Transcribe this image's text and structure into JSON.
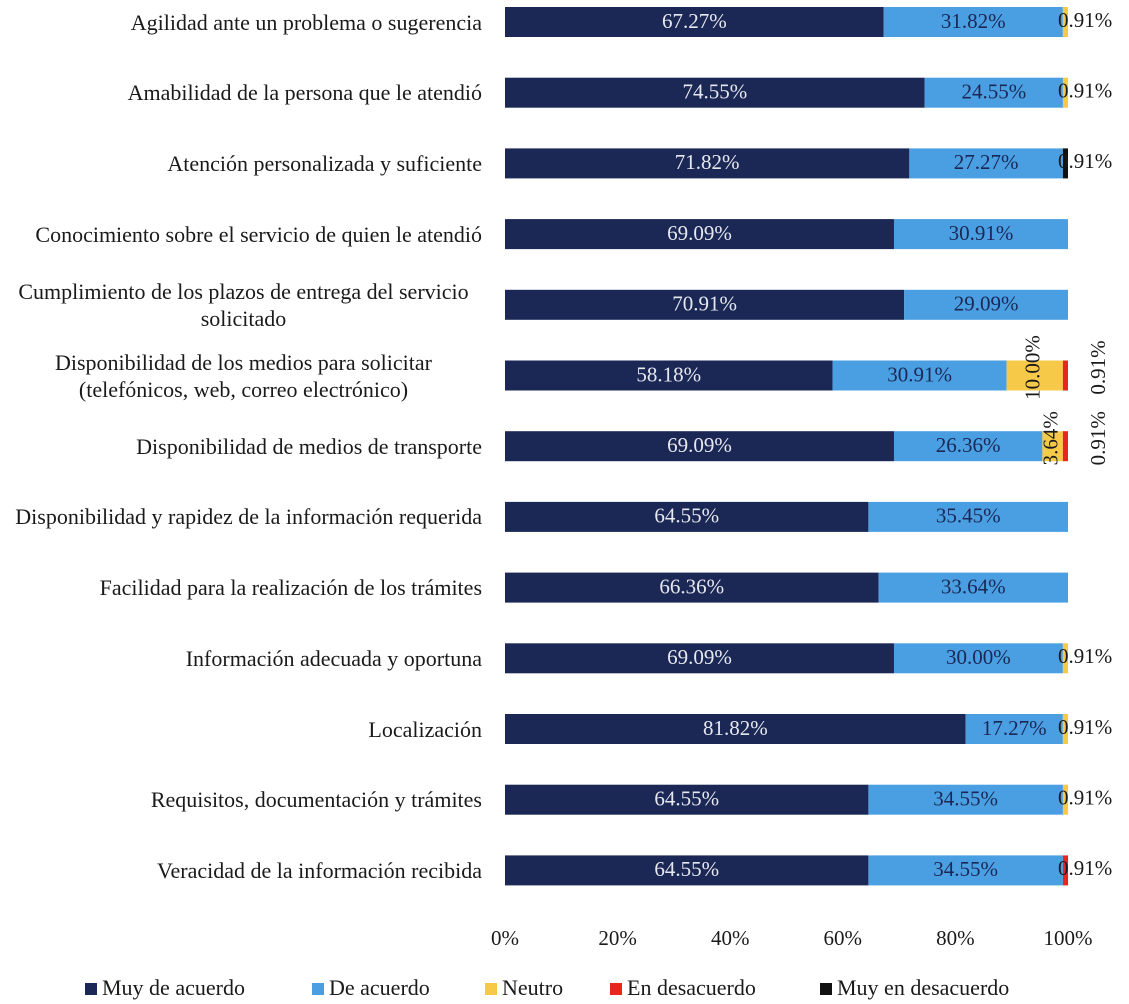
{
  "chart_data": {
    "type": "stacked-bar-horizontal",
    "categories": [
      "Agilidad ante un problema o sugerencia",
      "Amabilidad de la persona que le atendió",
      "Atención personalizada y suficiente",
      "Conocimiento sobre el servicio de quien le atendió",
      "Cumplimiento de los plazos de entrega del servicio solicitado",
      "Disponibilidad de los medios para solicitar (telefónicos, web, correo electrónico)",
      "Disponibilidad de medios de transporte",
      "Disponibilidad y rapidez de la información requerida",
      "Facilidad para la realización de los trámites",
      "Información adecuada y oportuna",
      "Localización",
      "Requisitos, documentación y trámites",
      "Veracidad de la información recibida"
    ],
    "series": [
      {
        "name": "Muy de acuerdo",
        "color": "#1b2754",
        "values": [
          67.27,
          74.55,
          71.82,
          69.09,
          70.91,
          58.18,
          69.09,
          64.55,
          66.36,
          69.09,
          81.82,
          64.55,
          64.55
        ],
        "value_labels": [
          "67.27%",
          "74.55%",
          "71.82%",
          "69.09%",
          "70.91%",
          "58.18%",
          "69.09%",
          "64.55%",
          "66.36%",
          "69.09%",
          "81.82%",
          "64.55%",
          "64.55%"
        ]
      },
      {
        "name": "De acuerdo",
        "color": "#4a9fe3",
        "values": [
          31.82,
          24.55,
          27.27,
          30.91,
          29.09,
          30.91,
          26.36,
          35.45,
          33.64,
          30.0,
          17.27,
          34.55,
          34.55
        ],
        "value_labels": [
          "31.82%",
          "24.55%",
          "27.27%",
          "30.91%",
          "29.09%",
          "30.91%",
          "26.36%",
          "35.45%",
          "33.64%",
          "30.00%",
          "17.27%",
          "34.55%",
          "34.55%"
        ]
      },
      {
        "name": "Neutro",
        "color": "#f7c948",
        "values": [
          0.91,
          0.91,
          null,
          null,
          null,
          10,
          3.64,
          null,
          null,
          0.91,
          0.91,
          0.91,
          null
        ],
        "value_labels": [
          "0.91%",
          "0.91%",
          null,
          null,
          null,
          "10.00%",
          "3.64%",
          null,
          null,
          "0.91%",
          "0.91%",
          "0.91%",
          null
        ]
      },
      {
        "name": "En desacuerdo",
        "color": "#e8261e",
        "values": [
          null,
          null,
          null,
          null,
          null,
          0.91,
          0.91,
          null,
          null,
          null,
          null,
          null,
          0.91
        ],
        "value_labels": [
          null,
          null,
          null,
          null,
          null,
          "0.91%",
          "0.91%",
          null,
          null,
          null,
          null,
          null,
          "0.91%"
        ]
      },
      {
        "name": "Muy en desacuerdo",
        "color": "#111111",
        "values": [
          null,
          null,
          0.91,
          null,
          null,
          null,
          null,
          null,
          null,
          null,
          null,
          null,
          null
        ],
        "value_labels": [
          null,
          null,
          "0.91%",
          null,
          null,
          null,
          null,
          null,
          null,
          null,
          null,
          null,
          null
        ]
      }
    ],
    "xlim": [
      0,
      100
    ],
    "xticks": [
      {
        "value": 0,
        "label": "0%"
      },
      {
        "value": 20,
        "label": "20%"
      },
      {
        "value": 40,
        "label": "40%"
      },
      {
        "value": 60,
        "label": "60%"
      },
      {
        "value": 80,
        "label": "80%"
      },
      {
        "value": 100,
        "label": "100%"
      }
    ],
    "legend": "bottom"
  }
}
